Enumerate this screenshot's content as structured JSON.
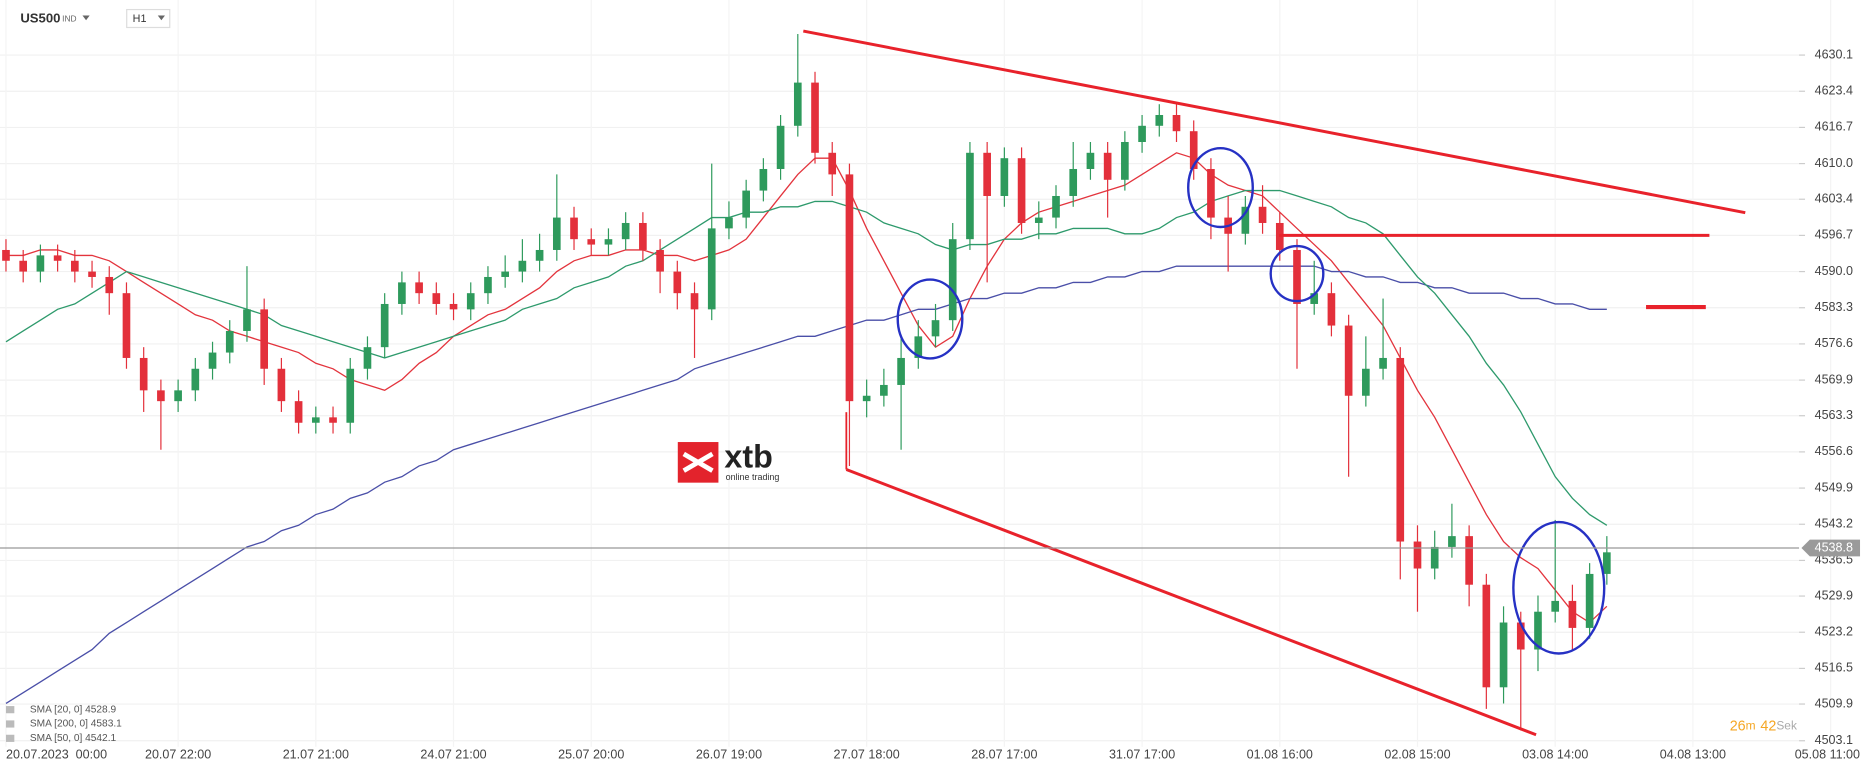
{
  "header": {
    "symbol": "US500",
    "market": "IND",
    "timeframe": "H1"
  },
  "logo": {
    "brand": "xtb",
    "tagline": "online trading"
  },
  "countdown": {
    "minutes": 26,
    "minutes_unit": "m",
    "seconds": 42,
    "seconds_unit": "Sek"
  },
  "chart_data": {
    "type": "candlestick",
    "grid": true,
    "up_color": "#2e9a5c",
    "down_color": "#e3303b",
    "categories": [
      "20.07.2023  00:00",
      null,
      null,
      null,
      null,
      null,
      null,
      null,
      null,
      null,
      "20.07 22:00",
      null,
      null,
      null,
      null,
      null,
      null,
      null,
      "21.07 21:00",
      null,
      null,
      null,
      null,
      null,
      null,
      null,
      "24.07 21:00",
      null,
      null,
      null,
      null,
      null,
      null,
      null,
      "25.07 20:00",
      null,
      null,
      null,
      null,
      null,
      null,
      null,
      "26.07 19:00",
      null,
      null,
      null,
      null,
      null,
      null,
      null,
      "27.07 18:00",
      null,
      null,
      null,
      null,
      null,
      null,
      null,
      "28.07 17:00",
      null,
      null,
      null,
      null,
      null,
      null,
      null,
      "31.07 17:00",
      null,
      null,
      null,
      null,
      null,
      null,
      null,
      "01.08 16:00",
      null,
      null,
      null,
      null,
      null,
      null,
      null,
      "02.08 15:00",
      null,
      null,
      null,
      null,
      null,
      null,
      null,
      "03.08 14:00",
      null,
      null,
      null,
      null,
      null,
      null,
      null,
      "04.08 13:00",
      null,
      null,
      null,
      null,
      null,
      null,
      null,
      "05.08 11:00"
    ],
    "open": [
      4594,
      4592,
      4590,
      4593,
      4592,
      4590,
      4589,
      4586,
      4574,
      4568,
      4566,
      4568,
      4572,
      4575,
      4579,
      4583,
      4572,
      4566,
      4562,
      4563,
      4562,
      4572,
      4576,
      4584,
      4588,
      4586,
      4584,
      4583,
      4586,
      4589,
      4590,
      4592,
      4594,
      4600,
      4596,
      4595,
      4596,
      4599,
      4594,
      4590,
      4586,
      4583,
      4598,
      4600,
      4605,
      4609,
      4617,
      4625,
      4612,
      4608,
      4566,
      4567,
      4569,
      4574,
      4578,
      4581,
      4596,
      4612,
      4604,
      4611,
      4599,
      4600,
      4604,
      4609,
      4612,
      4607,
      4614,
      4617,
      4619,
      4616,
      4609,
      4600,
      4597,
      4602,
      4599,
      4594,
      4584,
      4586,
      4580,
      4567,
      4572,
      4574,
      4540,
      4535,
      4539,
      4541,
      4532,
      4513,
      4525,
      4520,
      4527,
      4529,
      4524,
      4534,
      null,
      null,
      null,
      null,
      null,
      null,
      null,
      null,
      null,
      null,
      null,
      null,
      null
    ],
    "high": [
      4596,
      4594,
      4595,
      4595,
      4594,
      4592,
      4591,
      4588,
      4576,
      4570,
      4570,
      4574,
      4577,
      4581,
      4591,
      4585,
      4574,
      4568,
      4565,
      4565,
      4574,
      4578,
      4586,
      4590,
      4590,
      4588,
      4586,
      4588,
      4591,
      4593,
      4596,
      4597,
      4608,
      4602,
      4598,
      4598,
      4601,
      4601,
      4596,
      4592,
      4588,
      4610,
      4603,
      4607,
      4611,
      4619,
      4634,
      4627,
      4614,
      4610,
      4570,
      4572,
      4578,
      4581,
      4584,
      4599,
      4614,
      4614,
      4613,
      4613,
      4603,
      4606,
      4614,
      4614,
      4614,
      4616,
      4619,
      4621,
      4621,
      4618,
      4611,
      4604,
      4604,
      4606,
      4601,
      4596,
      4592,
      4588,
      4582,
      4578,
      4585,
      4576,
      4543,
      4542,
      4547,
      4543,
      4534,
      4528,
      4527,
      4530,
      4544,
      4532,
      4536,
      4541,
      null,
      null,
      null,
      null,
      null,
      null,
      null,
      null,
      null,
      null,
      null,
      null,
      null
    ],
    "low": [
      4590,
      4588,
      4588,
      4590,
      4588,
      4587,
      4582,
      4572,
      4564,
      4557,
      4564,
      4566,
      4570,
      4573,
      4577,
      4569,
      4564,
      4560,
      4560,
      4560,
      4560,
      4570,
      4574,
      4582,
      4584,
      4582,
      4581,
      4581,
      4584,
      4587,
      4588,
      4590,
      4592,
      4594,
      4593,
      4593,
      4594,
      4592,
      4586,
      4583,
      4574,
      4581,
      4596,
      4598,
      4603,
      4607,
      4615,
      4610,
      4604,
      4554,
      4563,
      4565,
      4557,
      4572,
      4576,
      4579,
      4594,
      4588,
      4602,
      4597,
      4596,
      4598,
      4602,
      4607,
      4600,
      4605,
      4612,
      4615,
      4614,
      4607,
      4596,
      4590,
      4595,
      4597,
      4592,
      4572,
      4582,
      4578,
      4552,
      4565,
      4570,
      4533,
      4527,
      4533,
      4537,
      4528,
      4509,
      4510,
      4505,
      4516,
      4525,
      4520,
      4522,
      4532,
      null,
      null,
      null,
      null,
      null,
      null,
      null,
      null,
      null,
      null,
      null,
      null,
      null
    ],
    "close": [
      4592,
      4590,
      4593,
      4592,
      4590,
      4589,
      4586,
      4574,
      4568,
      4566,
      4568,
      4572,
      4575,
      4579,
      4583,
      4572,
      4566,
      4562,
      4563,
      4562,
      4572,
      4576,
      4584,
      4588,
      4586,
      4584,
      4583,
      4586,
      4589,
      4590,
      4592,
      4594,
      4600,
      4596,
      4595,
      4596,
      4599,
      4594,
      4590,
      4586,
      4583,
      4598,
      4600,
      4605,
      4609,
      4617,
      4625,
      4612,
      4608,
      4566,
      4567,
      4569,
      4574,
      4578,
      4581,
      4596,
      4612,
      4604,
      4611,
      4599,
      4600,
      4604,
      4609,
      4612,
      4607,
      4614,
      4617,
      4619,
      4616,
      4609,
      4600,
      4597,
      4602,
      4599,
      4594,
      4584,
      4586,
      4580,
      4567,
      4572,
      4574,
      4540,
      4535,
      4539,
      4541,
      4532,
      4513,
      4525,
      4520,
      4527,
      4529,
      4524,
      4534,
      4538,
      null,
      null,
      null,
      null,
      null,
      null,
      null,
      null,
      null,
      null,
      null,
      null,
      null
    ],
    "series": [
      {
        "name": "SMA [20, 0] 4528.9",
        "color": "#e3343d",
        "values": [
          4593,
          4593,
          4594,
          4594,
          4593,
          4593,
          4592,
          4590,
          4588,
          4586,
          4584,
          4582,
          4581,
          4579,
          4578,
          4577,
          4576,
          4575,
          4573,
          4572,
          4570,
          4569,
          4568,
          4570,
          4573,
          4575,
          4578,
          4580,
          4582,
          4583,
          4585,
          4587,
          4590,
          4592,
          4593,
          4593,
          4594,
          4594,
          4593,
          4593,
          4592,
          4593,
          4594,
          4596,
          4600,
          4604,
          4608,
          4611,
          4611,
          4605,
          4598,
          4592,
          4586,
          4580,
          4576,
          4578,
          4585,
          4591,
          4596,
          4599,
          4601,
          4602,
          4603,
          4604,
          4605,
          4606,
          4608,
          4610,
          4612,
          4611,
          4608,
          4606,
          4605,
          4604,
          4601,
          4598,
          4595,
          4592,
          4588,
          4584,
          4580,
          4574,
          4568,
          4563,
          4557,
          4551,
          4545,
          4540,
          4537,
          4535,
          4531,
          4527,
          4525,
          4528,
          null,
          null,
          null,
          null,
          null,
          null,
          null,
          null,
          null,
          null,
          null,
          null,
          null
        ]
      },
      {
        "name": "SMA [200, 0] 4583.1",
        "color": "#4a4fa8",
        "values": [
          4510,
          4512,
          4514,
          4516,
          4518,
          4520,
          4523,
          4525,
          4527,
          4529,
          4531,
          4533,
          4535,
          4537,
          4539,
          4540,
          4542,
          4543,
          4545,
          4546,
          4548,
          4549,
          4551,
          4552,
          4554,
          4555,
          4557,
          4558,
          4559,
          4560,
          4561,
          4562,
          4563,
          4564,
          4565,
          4566,
          4567,
          4568,
          4569,
          4570,
          4572,
          4573,
          4574,
          4575,
          4576,
          4577,
          4578,
          4578,
          4579,
          4580,
          4581,
          4581,
          4582,
          4583,
          4583,
          4584,
          4585,
          4585,
          4586,
          4586,
          4587,
          4587,
          4588,
          4588,
          4589,
          4589,
          4590,
          4590,
          4591,
          4591,
          4591,
          4591,
          4591,
          4591,
          4591,
          4591,
          4591,
          4590,
          4590,
          4589,
          4589,
          4588,
          4588,
          4587,
          4587,
          4586,
          4586,
          4586,
          4585,
          4585,
          4584,
          4584,
          4583,
          4583,
          null,
          null,
          null,
          null,
          null,
          null,
          null,
          null,
          null,
          null,
          null,
          null,
          null
        ]
      },
      {
        "name": "SMA [50, 0] 4542.1",
        "color": "#2e9a6c",
        "values": [
          4577,
          4579,
          4581,
          4583,
          4584,
          4586,
          4588,
          4590,
          4589,
          4588,
          4587,
          4586,
          4585,
          4584,
          4583,
          4582,
          4580,
          4579,
          4578,
          4577,
          4576,
          4575,
          4574,
          4575,
          4576,
          4577,
          4578,
          4579,
          4580,
          4581,
          4583,
          4584,
          4585,
          4587,
          4588,
          4589,
          4591,
          4592,
          4594,
          4596,
          4598,
          4600,
          4600,
          4601,
          4601,
          4602,
          4602,
          4603,
          4603,
          4602,
          4601,
          4599,
          4598,
          4597,
          4595,
          4594,
          4595,
          4595,
          4596,
          4596,
          4597,
          4597,
          4598,
          4598,
          4598,
          4597,
          4597,
          4598,
          4600,
          4601,
          4603,
          4604,
          4605,
          4605,
          4605,
          4604,
          4603,
          4602,
          4600,
          4599,
          4597,
          4593,
          4589,
          4586,
          4582,
          4578,
          4573,
          4569,
          4564,
          4558,
          4552,
          4548,
          4545,
          4543,
          null,
          null,
          null,
          null,
          null,
          null,
          null,
          null,
          null,
          null,
          null,
          null,
          null
        ]
      }
    ],
    "current_price": 4538.8,
    "ylim": [
      4502.0,
      4640.3
    ],
    "yticks": [
      4503.1,
      4509.9,
      4516.5,
      4523.2,
      4529.9,
      4536.5,
      4543.2,
      4549.9,
      4556.6,
      4563.3,
      4569.9,
      4576.6,
      4583.3,
      {
        "value": 4590,
        "label": "4590.0"
      },
      4596.7,
      4603.4,
      {
        "value": 4610,
        "label": "4610.0"
      },
      4616.7,
      4623.4,
      4630.1
    ]
  }
}
